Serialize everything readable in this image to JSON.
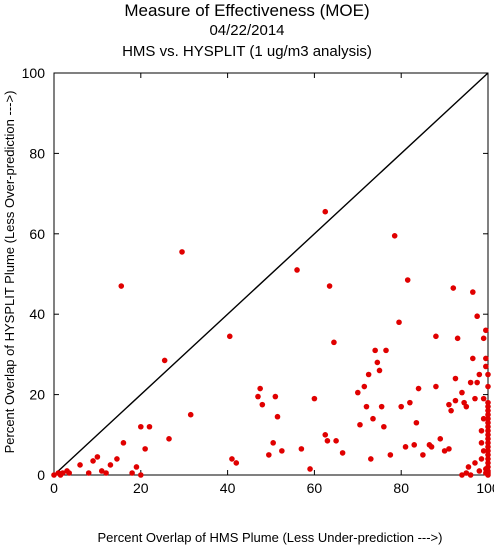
{
  "chart_data": {
    "type": "scatter",
    "title": "Measure of Effectiveness (MOE)",
    "subtitle_date": "04/22/2014",
    "subtitle": "HMS vs. HYSPLIT  (1 ug/m3 analysis)",
    "xlabel": "Percent Overlap of HMS Plume (Less Under-prediction --->)",
    "ylabel": "Percent Overlap of HYSPLIT Plume (Less Over-prediction --->)",
    "xlim": [
      0,
      100
    ],
    "ylim": [
      0,
      100
    ],
    "xticks": [
      0,
      20,
      40,
      60,
      80,
      100
    ],
    "yticks": [
      0,
      20,
      40,
      60,
      80,
      100
    ],
    "reference_line": "y = x",
    "grid": false,
    "point_color": "#e00000",
    "line_color": "#000000",
    "series": [
      {
        "points": [
          [
            0,
            0
          ],
          [
            1,
            0.5
          ],
          [
            1.5,
            0
          ],
          [
            2,
            0.5
          ],
          [
            3,
            1
          ],
          [
            3.5,
            0.5
          ],
          [
            6,
            2.5
          ],
          [
            8,
            0.5
          ],
          [
            9,
            3.5
          ],
          [
            10,
            4.5
          ],
          [
            11,
            1
          ],
          [
            12,
            0.5
          ],
          [
            13,
            2.5
          ],
          [
            14.5,
            4
          ],
          [
            15.5,
            47
          ],
          [
            16,
            8
          ],
          [
            18,
            0.5
          ],
          [
            19,
            2
          ],
          [
            20,
            0
          ],
          [
            20,
            12
          ],
          [
            22,
            12
          ],
          [
            21,
            6.5
          ],
          [
            25.5,
            28.5
          ],
          [
            26.5,
            9
          ],
          [
            29.5,
            55.5
          ],
          [
            31.5,
            15
          ],
          [
            40.5,
            34.5
          ],
          [
            41,
            4
          ],
          [
            42,
            3
          ],
          [
            47,
            19.5
          ],
          [
            47.5,
            21.5
          ],
          [
            48,
            17.5
          ],
          [
            49.5,
            5
          ],
          [
            50.5,
            8
          ],
          [
            51,
            19.5
          ],
          [
            51.5,
            14.5
          ],
          [
            52.5,
            6
          ],
          [
            56,
            51
          ],
          [
            57,
            6.5
          ],
          [
            59,
            1.5
          ],
          [
            60,
            19
          ],
          [
            62.5,
            10
          ],
          [
            62.5,
            65.5
          ],
          [
            63,
            8.5
          ],
          [
            63.5,
            47
          ],
          [
            64.5,
            33
          ],
          [
            65,
            8.5
          ],
          [
            66.5,
            5.5
          ],
          [
            70,
            20.5
          ],
          [
            70.5,
            12.5
          ],
          [
            71.5,
            22
          ],
          [
            72,
            17
          ],
          [
            72.5,
            25
          ],
          [
            73,
            4
          ],
          [
            73.5,
            14
          ],
          [
            74,
            31
          ],
          [
            74.5,
            28
          ],
          [
            75,
            26
          ],
          [
            75.5,
            17
          ],
          [
            76,
            12
          ],
          [
            76.5,
            31
          ],
          [
            77.5,
            5
          ],
          [
            78.5,
            59.5
          ],
          [
            79.5,
            38
          ],
          [
            80,
            17
          ],
          [
            81,
            7
          ],
          [
            81.5,
            48.5
          ],
          [
            82,
            18
          ],
          [
            83,
            7.5
          ],
          [
            83.5,
            13
          ],
          [
            84,
            21.5
          ],
          [
            85,
            5
          ],
          [
            86.5,
            7.5
          ],
          [
            87,
            7
          ],
          [
            88,
            34.5
          ],
          [
            88,
            22
          ],
          [
            89,
            9
          ],
          [
            90,
            6
          ],
          [
            91,
            17.5
          ],
          [
            91.5,
            16
          ],
          [
            92,
            46.5
          ],
          [
            92.5,
            24
          ],
          [
            93,
            34
          ],
          [
            94,
            20.5
          ],
          [
            94.5,
            18
          ],
          [
            95,
            17
          ],
          [
            95.5,
            2
          ],
          [
            96,
            23
          ],
          [
            96.5,
            45.5
          ],
          [
            96.5,
            29
          ],
          [
            97.5,
            39.5
          ],
          [
            97.5,
            23
          ],
          [
            98,
            25
          ],
          [
            98.5,
            8
          ],
          [
            98.5,
            4
          ],
          [
            99,
            6
          ],
          [
            99,
            34
          ],
          [
            99.5,
            36
          ],
          [
            99.5,
            29
          ],
          [
            99.5,
            27
          ],
          [
            100,
            25
          ],
          [
            100,
            22
          ],
          [
            100,
            18
          ],
          [
            100,
            17
          ],
          [
            100,
            16
          ],
          [
            100,
            15
          ],
          [
            100,
            14
          ],
          [
            100,
            13
          ],
          [
            100,
            12
          ],
          [
            100,
            11
          ],
          [
            100,
            10
          ],
          [
            100,
            9
          ],
          [
            100,
            8
          ],
          [
            100,
            7
          ],
          [
            100,
            6
          ],
          [
            100,
            5
          ],
          [
            100,
            4
          ],
          [
            100,
            3
          ],
          [
            100,
            2
          ],
          [
            100,
            1
          ],
          [
            100,
            0.5
          ],
          [
            100,
            0
          ],
          [
            99.5,
            0.5
          ],
          [
            99.5,
            1.5
          ],
          [
            98,
            1
          ],
          [
            97,
            3
          ],
          [
            96,
            0
          ],
          [
            95,
            0.5
          ],
          [
            94,
            0
          ],
          [
            92.5,
            18.5
          ],
          [
            91,
            6.5
          ],
          [
            97,
            19
          ],
          [
            98.5,
            11
          ],
          [
            99,
            14
          ],
          [
            99,
            19
          ]
        ]
      }
    ]
  }
}
